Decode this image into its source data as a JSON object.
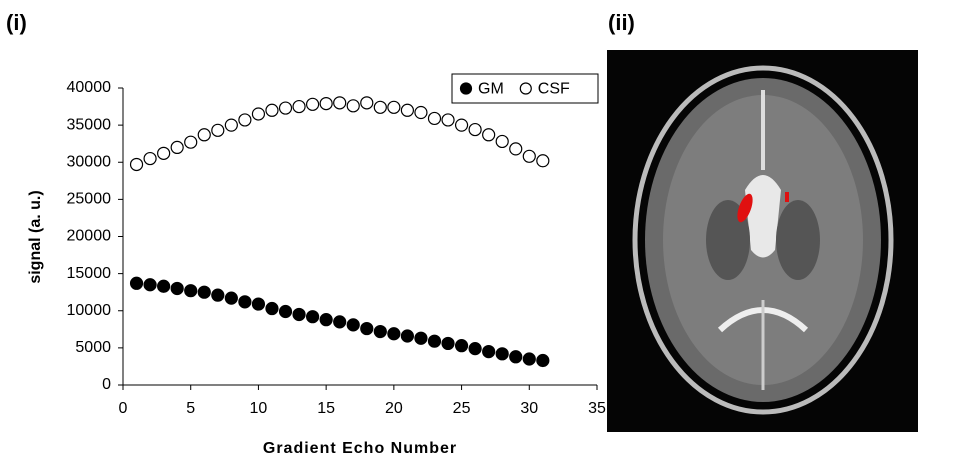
{
  "panel_labels": [
    "(i)",
    "(ii)"
  ],
  "chart_data": {
    "type": "scatter",
    "x_label": "Gradient Echo Number",
    "y_label": "signal (a. u.)",
    "x": [
      1,
      2,
      3,
      4,
      5,
      6,
      7,
      8,
      9,
      10,
      11,
      12,
      13,
      14,
      15,
      16,
      17,
      18,
      19,
      20,
      21,
      22,
      23,
      24,
      25,
      26,
      27,
      28,
      29,
      30,
      31
    ],
    "series": [
      {
        "name": "GM",
        "color": "#000000",
        "filled": true,
        "values": [
          13700,
          13500,
          13300,
          13000,
          12700,
          12500,
          12100,
          11700,
          11200,
          10900,
          10300,
          9900,
          9500,
          9200,
          8800,
          8500,
          8100,
          7600,
          7200,
          6900,
          6600,
          6300,
          5900,
          5600,
          5300,
          4900,
          4500,
          4200,
          3800,
          3500,
          3300
        ]
      },
      {
        "name": "CSF",
        "color": "#000000",
        "filled": false,
        "values": [
          29700,
          30500,
          31200,
          32000,
          32700,
          33700,
          34300,
          35000,
          35700,
          36500,
          37000,
          37300,
          37500,
          37800,
          37900,
          38000,
          37600,
          38000,
          37400,
          37400,
          37000,
          36700,
          35900,
          35700,
          35000,
          34400,
          33700,
          32800,
          31800,
          30800,
          30200
        ]
      }
    ],
    "xlim": [
      0,
      35
    ],
    "xticks": [
      0,
      5,
      10,
      15,
      20,
      25,
      30,
      35
    ],
    "ylim": [
      0,
      40000
    ],
    "yticks": [
      0,
      5000,
      10000,
      15000,
      20000,
      25000,
      30000,
      35000,
      40000
    ],
    "grid": false,
    "legend": "upper right"
  }
}
